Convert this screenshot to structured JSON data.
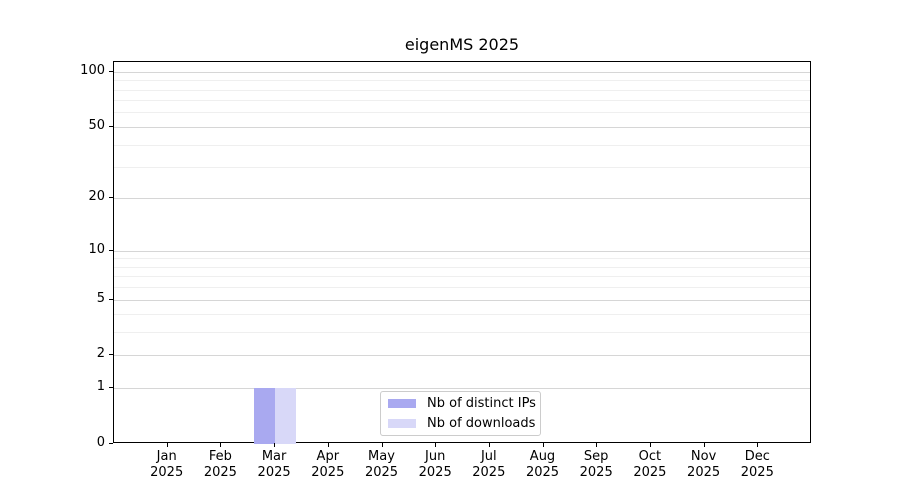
{
  "chart_data": {
    "type": "bar",
    "title": "eigenMS 2025",
    "categories": [
      "Jan 2025",
      "Feb 2025",
      "Mar 2025",
      "Apr 2025",
      "May 2025",
      "Jun 2025",
      "Jul 2025",
      "Aug 2025",
      "Sep 2025",
      "Oct 2025",
      "Nov 2025",
      "Dec 2025"
    ],
    "series": [
      {
        "name": "Nb of distinct IPs",
        "color": "#a9a9f0",
        "values": [
          0,
          0,
          1,
          0,
          0,
          0,
          0,
          0,
          0,
          0,
          0,
          0
        ]
      },
      {
        "name": "Nb of downloads",
        "color": "#d8d8f8",
        "values": [
          0,
          0,
          1,
          0,
          0,
          0,
          0,
          0,
          0,
          0,
          0,
          0
        ]
      }
    ],
    "yscale": "log1p",
    "ylim": [
      0,
      113
    ],
    "yticks": [
      0,
      1,
      2,
      5,
      10,
      20,
      50,
      100
    ],
    "yticks_minor": [
      3,
      4,
      6,
      7,
      8,
      9,
      30,
      40,
      60,
      70,
      80,
      90
    ],
    "grid": "horizontal",
    "legend_position": "lower center"
  },
  "colors": {
    "grid_major": "#d6d6d6",
    "grid_minor": "#efefef",
    "spine": "#000000",
    "legend_border": "#cccccc",
    "background": "#ffffff"
  }
}
